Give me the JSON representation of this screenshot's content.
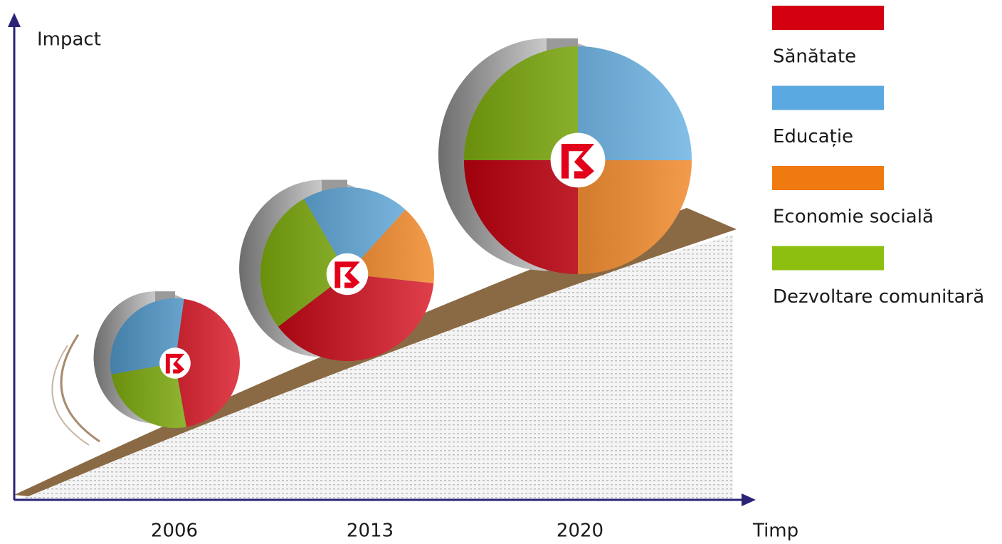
{
  "chart_data": {
    "type": "pie",
    "x_label": "Timp",
    "y_label": "Impact",
    "categories": [
      "2006",
      "2013",
      "2020"
    ],
    "series": [
      {
        "name": "Sănătate",
        "color": "#d40010",
        "values": [
          45,
          38,
          25
        ]
      },
      {
        "name": "Educație",
        "color": "#5aa9e0",
        "values": [
          30,
          20,
          25
        ]
      },
      {
        "name": "Economie socială",
        "color": "#ee7a10",
        "values": [
          0,
          15,
          25
        ]
      },
      {
        "name": "Dezvoltare comunitară",
        "color": "#8cbf10",
        "values": [
          25,
          27,
          25
        ]
      }
    ]
  }
}
